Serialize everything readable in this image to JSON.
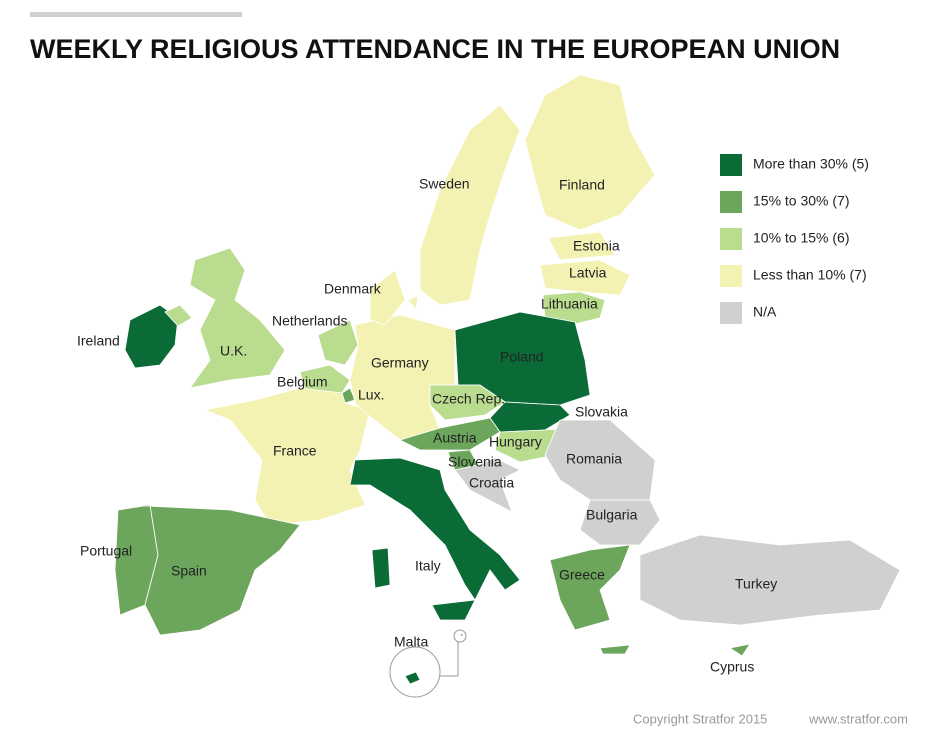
{
  "title": "WEEKLY RELIGIOUS ATTENDANCE IN THE EUROPEAN UNION",
  "legend": [
    {
      "label": "More than 30% (5)",
      "color": "#0b6b36"
    },
    {
      "label": "15% to 30% (7)",
      "color": "#6ca65c"
    },
    {
      "label": "10% to 15% (6)",
      "color": "#badc8f"
    },
    {
      "label": "Less than 10% (7)",
      "color": "#f3f2b3"
    },
    {
      "label": "N/A",
      "color": "#d0d0ce"
    }
  ],
  "countries": [
    {
      "label": "Ireland",
      "class": 0
    },
    {
      "label": "U.K.",
      "class": 2
    },
    {
      "label": "Netherlands",
      "class": 2
    },
    {
      "label": "Belgium",
      "class": 2
    },
    {
      "label": "Lux.",
      "class": 1
    },
    {
      "label": "France",
      "class": 3
    },
    {
      "label": "Germany",
      "class": 3
    },
    {
      "label": "Denmark",
      "class": 3
    },
    {
      "label": "Sweden",
      "class": 3
    },
    {
      "label": "Finland",
      "class": 3
    },
    {
      "label": "Estonia",
      "class": 3
    },
    {
      "label": "Latvia",
      "class": 3
    },
    {
      "label": "Lithuania",
      "class": 2
    },
    {
      "label": "Poland",
      "class": 0
    },
    {
      "label": "Czech Rep.",
      "class": 2
    },
    {
      "label": "Slovakia",
      "class": 0
    },
    {
      "label": "Austria",
      "class": 1
    },
    {
      "label": "Hungary",
      "class": 2
    },
    {
      "label": "Slovenia",
      "class": 1
    },
    {
      "label": "Croatia",
      "class": 4
    },
    {
      "label": "Romania",
      "class": 4
    },
    {
      "label": "Bulgaria",
      "class": 4
    },
    {
      "label": "Greece",
      "class": 1
    },
    {
      "label": "Turkey",
      "class": 4
    },
    {
      "label": "Cyprus",
      "class": 1
    },
    {
      "label": "Italy",
      "class": 0
    },
    {
      "label": "Malta",
      "class": 0
    },
    {
      "label": "Portugal",
      "class": 1
    },
    {
      "label": "Spain",
      "class": 1
    }
  ],
  "footer": {
    "copyright": "Copyright Stratfor 2015",
    "url": "www.stratfor.com"
  }
}
